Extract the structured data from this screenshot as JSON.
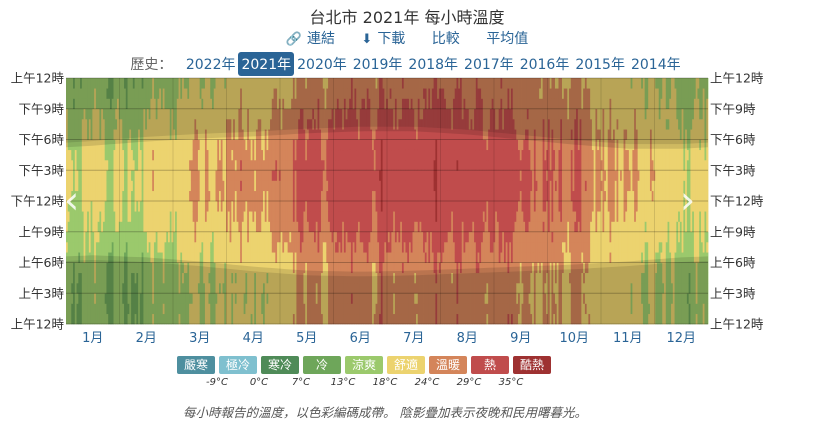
{
  "page": {
    "title": "台北市 2021年 每小時溫度",
    "actions": {
      "link": "連結",
      "download": "下載",
      "compare": "比較",
      "average": "平均值"
    },
    "history_label": "歷史：",
    "years": [
      "2022年",
      "2021年",
      "2020年",
      "2019年",
      "2018年",
      "2017年",
      "2016年",
      "2015年",
      "2014年"
    ],
    "active_year": "2021年",
    "note": "每小時報告的溫度，以色彩編碼成帶。 陰影疊加表示夜晚和民用曙暮光。"
  },
  "icons": {
    "link": "link-icon",
    "download": "download-icon",
    "prev": "chevron-left-icon",
    "next": "chevron-right-icon"
  },
  "legend": {
    "categories": [
      {
        "label": "嚴寒",
        "color": "#4e8f9f"
      },
      {
        "label": "極冷",
        "color": "#7fc0cf"
      },
      {
        "label": "寒冷",
        "color": "#4f8b58"
      },
      {
        "label": "冷",
        "color": "#6ea65a"
      },
      {
        "label": "涼爽",
        "color": "#9bc96c"
      },
      {
        "label": "舒適",
        "color": "#ecd36f"
      },
      {
        "label": "溫暖",
        "color": "#d4855a"
      },
      {
        "label": "熱",
        "color": "#c04c4c"
      },
      {
        "label": "酷熱",
        "color": "#9e3131"
      }
    ],
    "thresholds": [
      "-9°C",
      "0°C",
      "7°C",
      "13°C",
      "18°C",
      "24°C",
      "29°C",
      "35°C"
    ]
  },
  "chart_data": {
    "type": "heatmap",
    "title": "台北市 2021年 每小時溫度",
    "x_categories": [
      "1月",
      "2月",
      "3月",
      "4月",
      "5月",
      "6月",
      "7月",
      "8月",
      "9月",
      "10月",
      "11月",
      "12月"
    ],
    "y_tick_labels": [
      "上午12時",
      "下午9時",
      "下午6時",
      "下午3時",
      "下午12時",
      "上午9時",
      "上午6時",
      "上午3時",
      "上午12時"
    ],
    "y_range_hours": [
      0,
      24
    ],
    "grid": true,
    "color_bands_c": [
      {
        "label": "嚴寒",
        "max": -9
      },
      {
        "label": "極冷",
        "min": -9,
        "max": 0
      },
      {
        "label": "寒冷",
        "min": 0,
        "max": 7
      },
      {
        "label": "冷",
        "min": 7,
        "max": 13
      },
      {
        "label": "涼爽",
        "min": 13,
        "max": 18
      },
      {
        "label": "舒適",
        "min": 18,
        "max": 24
      },
      {
        "label": "溫暖",
        "min": 24,
        "max": 29
      },
      {
        "label": "熱",
        "min": 29,
        "max": 35
      },
      {
        "label": "酷熱",
        "min": 35
      }
    ],
    "monthly_temperature_estimate_c": {
      "months": [
        "1月",
        "2月",
        "3月",
        "4月",
        "5月",
        "6月",
        "7月",
        "8月",
        "9月",
        "10月",
        "11月",
        "12月"
      ],
      "daily_low": [
        14,
        15,
        17,
        20,
        24,
        26,
        27,
        27,
        26,
        23,
        20,
        16
      ],
      "daily_high": [
        19,
        21,
        23,
        27,
        31,
        32,
        34,
        33,
        32,
        28,
        24,
        20
      ]
    },
    "sunrise_sunset_hours": {
      "months": [
        "1月",
        "2月",
        "3月",
        "4月",
        "5月",
        "6月",
        "7月",
        "8月",
        "9月",
        "10月",
        "11月",
        "12月"
      ],
      "sunrise": [
        6.7,
        6.5,
        6.1,
        5.6,
        5.2,
        5.1,
        5.2,
        5.4,
        5.6,
        5.8,
        6.1,
        6.5
      ],
      "sunset": [
        17.4,
        17.8,
        18.1,
        18.3,
        18.6,
        18.8,
        18.8,
        18.5,
        18.0,
        17.5,
        17.1,
        17.1
      ]
    }
  }
}
